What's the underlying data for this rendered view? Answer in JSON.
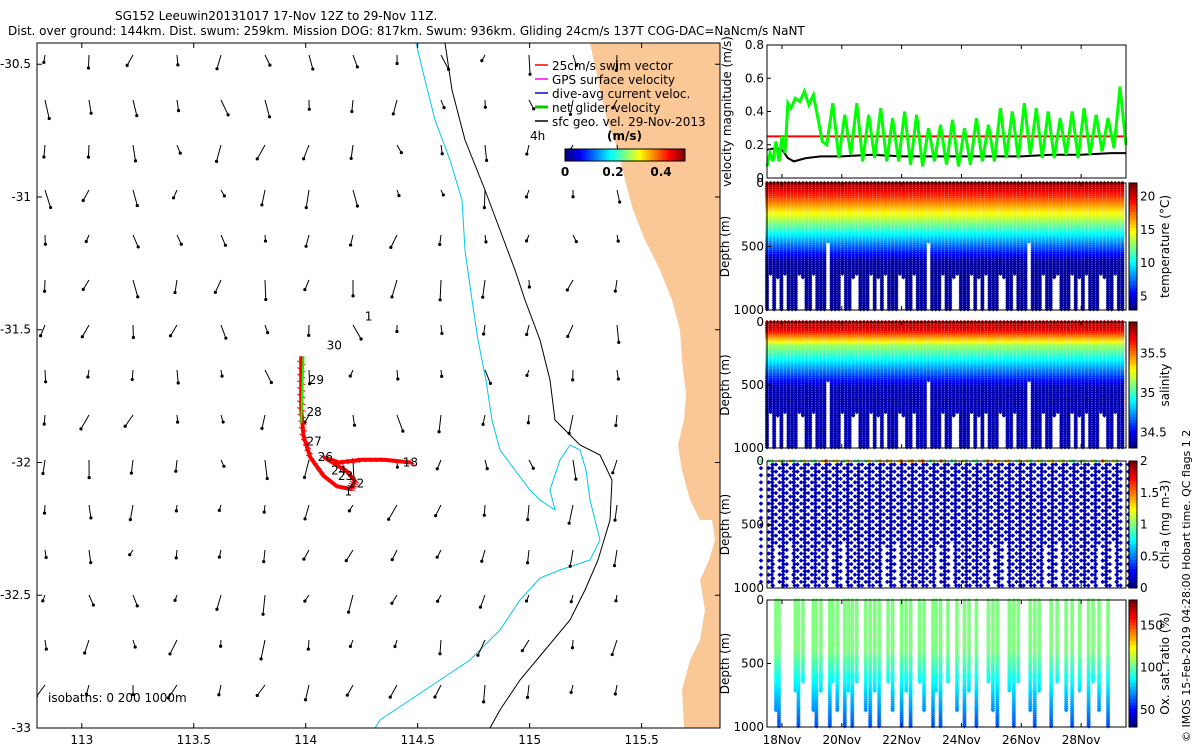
{
  "header": {
    "title": "SG152 Leeuwin20131017 17-Nov 12Z to 29-Nov 11Z.",
    "subtitle": "Dist. over ground: 144km. Dist. swum: 259km. Mission DOG: 817km. Swum: 936km. Gliding 24cm/s 137T COG-DAC=NaNcm/s NaNT"
  },
  "colors": {
    "land": "#f9c896",
    "isobath_200": "#00c8e6",
    "isobath_1000": "#000000",
    "track": "#ff0000",
    "glider_velocity": "#00ff00",
    "swim_line": "#ff0000",
    "current_line": "#000000",
    "ox_profile": "#22c29a"
  },
  "map": {
    "xlim": [
      112.8,
      115.85
    ],
    "ylim": [
      -33,
      -30.42
    ],
    "xticks": [
      113,
      113.5,
      114,
      114.5,
      115,
      115.5
    ],
    "xtick_labels": [
      "113",
      "113.5",
      "114",
      "114.5",
      "115",
      "115.5"
    ],
    "yticks": [
      -30.5,
      -31,
      -31.5,
      -32,
      -32.5,
      -33
    ],
    "ytick_labels": [
      "-30.5",
      "-31",
      "-31.5",
      "-32",
      "-32.5",
      "-33"
    ],
    "isobath_label": "isobaths: 0   200   1000m",
    "legend": [
      {
        "label": "25cm/s swim vector",
        "color": "#ff0000"
      },
      {
        "label": "GPS surface velocity",
        "color": "#ff00ff"
      },
      {
        "label": "dive-avg current veloc.",
        "color": "#0000ff"
      },
      {
        "label": "net glider velocity",
        "color": "#00cc00"
      },
      {
        "label": "sfc geo. vel. 29-Nov-2013",
        "color": "#000000"
      }
    ],
    "legend_side_text": "4h",
    "colorbar": {
      "title": "(m/s)",
      "ticks": [
        "0",
        "0.2",
        "0.4"
      ],
      "range": [
        0,
        0.5
      ]
    },
    "day_labels": [
      {
        "text": "30",
        "lon": 114.08,
        "lat": -31.56
      },
      {
        "text": "29",
        "lon": 114.0,
        "lat": -31.69
      },
      {
        "text": "28",
        "lon": 113.99,
        "lat": -31.81
      },
      {
        "text": "27",
        "lon": 113.99,
        "lat": -31.92
      },
      {
        "text": "26",
        "lon": 114.04,
        "lat": -31.98
      },
      {
        "text": "24",
        "lon": 114.1,
        "lat": -32.03
      },
      {
        "text": "23",
        "lon": 114.13,
        "lat": -32.05
      },
      {
        "text": "22",
        "lon": 114.18,
        "lat": -32.08
      },
      {
        "text": "1",
        "lon": 114.16,
        "lat": -32.11
      },
      {
        "text": "18",
        "lon": 114.42,
        "lat": -32.0
      },
      {
        "text": "1",
        "lon": 114.25,
        "lat": -31.45
      }
    ]
  },
  "chart_data": [
    {
      "type": "line",
      "name": "velocity",
      "ylabel": "velocity magnitude (m/s)",
      "ylim": [
        0,
        0.8
      ],
      "yticks": [
        0,
        0.2,
        0.4,
        0.6,
        0.8
      ],
      "ytick_labels": [
        "0",
        "0.2",
        "0.4",
        "0.6",
        "0.8"
      ],
      "xlim": [
        17.5,
        29.5
      ],
      "series": [
        {
          "name": "",
          "color": "#ff0000",
          "x": [
            17.5,
            29.5
          ],
          "values": [
            0.25,
            0.25
          ]
        },
        {
          "name": "",
          "color": "#000000",
          "x": [
            17.5,
            17.8,
            18.0,
            18.2,
            18.4,
            18.8,
            19.3,
            20.0,
            21,
            22,
            23,
            24,
            25,
            26,
            27,
            28,
            29,
            29.5
          ],
          "values": [
            0.17,
            0.18,
            0.17,
            0.12,
            0.1,
            0.12,
            0.13,
            0.13,
            0.14,
            0.13,
            0.13,
            0.13,
            0.13,
            0.13,
            0.14,
            0.14,
            0.15,
            0.15
          ]
        },
        {
          "name": "",
          "color": "#00ff00",
          "x": [
            17.5,
            17.6,
            17.7,
            17.8,
            17.9,
            18.0,
            18.1,
            18.2,
            18.3,
            18.45,
            18.6,
            18.75,
            18.9,
            19.05,
            19.2,
            19.35,
            19.5,
            19.7,
            19.9,
            20.1,
            20.3,
            20.5,
            20.7,
            20.9,
            21.1,
            21.3,
            21.5,
            21.7,
            21.9,
            22.1,
            22.3,
            22.5,
            22.7,
            22.9,
            23.1,
            23.3,
            23.5,
            23.7,
            23.9,
            24.1,
            24.3,
            24.5,
            24.7,
            24.9,
            25.1,
            25.3,
            25.5,
            25.7,
            25.9,
            26.1,
            26.3,
            26.5,
            26.7,
            26.9,
            27.1,
            27.3,
            27.5,
            27.7,
            27.9,
            28.1,
            28.3,
            28.5,
            28.7,
            28.9,
            29.1,
            29.3,
            29.5
          ],
          "values": [
            0.07,
            0.15,
            0.1,
            0.22,
            0.1,
            0.25,
            0.15,
            0.45,
            0.42,
            0.48,
            0.46,
            0.52,
            0.44,
            0.5,
            0.36,
            0.22,
            0.2,
            0.45,
            0.12,
            0.38,
            0.14,
            0.45,
            0.1,
            0.38,
            0.12,
            0.42,
            0.1,
            0.36,
            0.1,
            0.4,
            0.08,
            0.38,
            0.07,
            0.3,
            0.1,
            0.32,
            0.08,
            0.35,
            0.07,
            0.3,
            0.08,
            0.36,
            0.1,
            0.32,
            0.1,
            0.42,
            0.12,
            0.4,
            0.12,
            0.45,
            0.14,
            0.42,
            0.12,
            0.4,
            0.12,
            0.36,
            0.14,
            0.4,
            0.12,
            0.42,
            0.14,
            0.38,
            0.16,
            0.36,
            0.18,
            0.55,
            0.2
          ]
        }
      ]
    },
    {
      "type": "scatter",
      "name": "temperature",
      "ylabel": "Depth (m)",
      "colorbar_label": "temperature (°C)",
      "colorbar_ticks": [
        "5",
        "10",
        "15",
        "20"
      ],
      "crange": [
        3,
        22
      ],
      "ylim": [
        1000,
        0
      ],
      "yticks": [
        0,
        500,
        1000
      ],
      "ytick_labels": [
        "0",
        "500",
        "1000"
      ],
      "profile_days": [
        17.5,
        17.62,
        17.74,
        17.86,
        17.98,
        18.1,
        18.22,
        18.34,
        18.46,
        18.58,
        18.7,
        18.82,
        18.94,
        19.06,
        19.18,
        19.3,
        19.42,
        19.54,
        19.66,
        19.78,
        19.9,
        20.02,
        20.14,
        20.26,
        20.38,
        20.5,
        20.62,
        20.74,
        20.86,
        20.98,
        21.1,
        21.22,
        21.34,
        21.46,
        21.58,
        21.7,
        21.82,
        21.94,
        22.06,
        22.18,
        22.3,
        22.42,
        22.54,
        22.66,
        22.78,
        22.9,
        23.02,
        23.14,
        23.26,
        23.38,
        23.5,
        23.62,
        23.74,
        23.86,
        23.98,
        24.1,
        24.22,
        24.34,
        24.46,
        24.58,
        24.7,
        24.82,
        24.94,
        25.06,
        25.18,
        25.3,
        25.42,
        25.54,
        25.66,
        25.78,
        25.9,
        26.02,
        26.14,
        26.26,
        26.38,
        26.5,
        26.62,
        26.74,
        26.86,
        26.98,
        27.1,
        27.22,
        27.34,
        27.46,
        27.58,
        27.7,
        27.82,
        27.94,
        28.06,
        28.18,
        28.3,
        28.42,
        28.54,
        28.66,
        28.78,
        28.9,
        29.02,
        29.14,
        29.26,
        29.38
      ],
      "max_depth_m": 1000
    },
    {
      "type": "scatter",
      "name": "salinity",
      "ylabel": "Depth (m)",
      "colorbar_label": "salinity",
      "colorbar_ticks": [
        "34.5",
        "35",
        "35.5"
      ],
      "crange": [
        34.3,
        35.9
      ],
      "ylim": [
        1000,
        0
      ],
      "yticks": [
        0,
        500,
        1000
      ],
      "ytick_labels": [
        "0",
        "500",
        "1000"
      ],
      "max_depth_m": 1000
    },
    {
      "type": "scatter",
      "name": "chl-a",
      "ylabel": "Depth (m)",
      "colorbar_label": "chl-a (mg m-3)",
      "colorbar_ticks": [
        "0",
        "0.5",
        "1",
        "1.5",
        "2"
      ],
      "crange": [
        0,
        2
      ],
      "ylim": [
        1000,
        0
      ],
      "yticks": [
        0,
        500,
        1000
      ],
      "ytick_labels": [
        "0",
        "500",
        "1000"
      ],
      "max_depth_m": 1000
    },
    {
      "type": "scatter",
      "name": "oxygen",
      "ylabel": "Depth (m)",
      "colorbar_label": "Ox. sat. ratio (%)",
      "colorbar_ticks": [
        "50",
        "100",
        "150"
      ],
      "crange": [
        30,
        180
      ],
      "ylim": [
        1000,
        0
      ],
      "yticks": [
        0,
        500,
        1000
      ],
      "ytick_labels": [
        "0",
        "500",
        "1000"
      ],
      "x_tick_days": [
        18,
        20,
        22,
        24,
        26,
        28
      ],
      "xtick_labels": [
        "18Nov",
        "20Nov",
        "22Nov",
        "24Nov",
        "26Nov",
        "28Nov"
      ],
      "profile_days": [
        17.8,
        17.9,
        18.45,
        18.55,
        18.7,
        19.05,
        19.15,
        19.3,
        19.6,
        19.7,
        19.85,
        20.1,
        20.22,
        20.35,
        20.5,
        20.8,
        20.95,
        21.1,
        21.25,
        21.55,
        21.7,
        22.0,
        22.15,
        22.3,
        22.6,
        22.75,
        23.05,
        23.15,
        23.3,
        23.55,
        23.85,
        24.1,
        24.25,
        24.5,
        24.9,
        25.05,
        25.2,
        25.6,
        25.75,
        25.9,
        26.3,
        26.45,
        26.6,
        27.0,
        27.2,
        27.5,
        27.7,
        27.95,
        28.25,
        28.4,
        28.6,
        28.9
      ],
      "max_depth_m": 1000
    }
  ],
  "watermark": "© IMOS 15-Feb-2019 04:28:00 Hobart time. QC flags 1  2"
}
